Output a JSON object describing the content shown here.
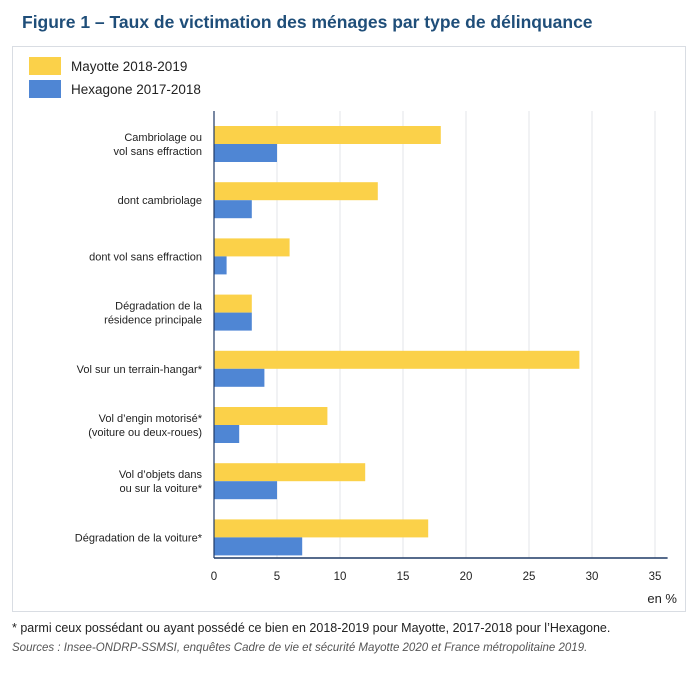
{
  "figure": {
    "title": "Figure 1 – Taux de victimation des ménages par type de délinquance",
    "footnote": "* parmi ceux possédant ou ayant possédé ce bien en 2018-2019 pour Mayotte, 2017-2018 pour l’Hexagone.",
    "sources": "Sources : Insee-ONDRP-SSMSI, enquêtes Cadre de vie et sécurité Mayotte 2020 et France métropolitaine 2019."
  },
  "chart_data": {
    "type": "bar",
    "orientation": "horizontal",
    "title": "",
    "xlabel": "en %",
    "ylabel": "",
    "xlim": [
      0,
      36
    ],
    "xticks": [
      0,
      5,
      10,
      15,
      20,
      25,
      30,
      35
    ],
    "grid": "vertical",
    "legend_position": "top-left",
    "categories": [
      [
        "Cambriolage ou",
        "vol sans effraction"
      ],
      [
        "dont cambriolage"
      ],
      [
        "dont vol sans effraction"
      ],
      [
        "Dégradation de la",
        "résidence principale"
      ],
      [
        "Vol sur un terrain-hangar*"
      ],
      [
        "Vol d’engin motorisé*",
        "(voiture ou deux-roues)"
      ],
      [
        "Vol d’objets dans",
        "ou sur la voiture*"
      ],
      [
        "Dégradation de la voiture*"
      ]
    ],
    "series": [
      {
        "name": "Mayotte 2018-2019",
        "color": "#fbd149",
        "values": [
          18,
          13,
          6,
          3,
          29,
          9,
          12,
          17
        ]
      },
      {
        "name": "Hexagone 2017-2018",
        "color": "#4f86d4",
        "values": [
          5,
          3,
          1,
          3,
          4,
          2,
          5,
          7
        ]
      }
    ]
  }
}
